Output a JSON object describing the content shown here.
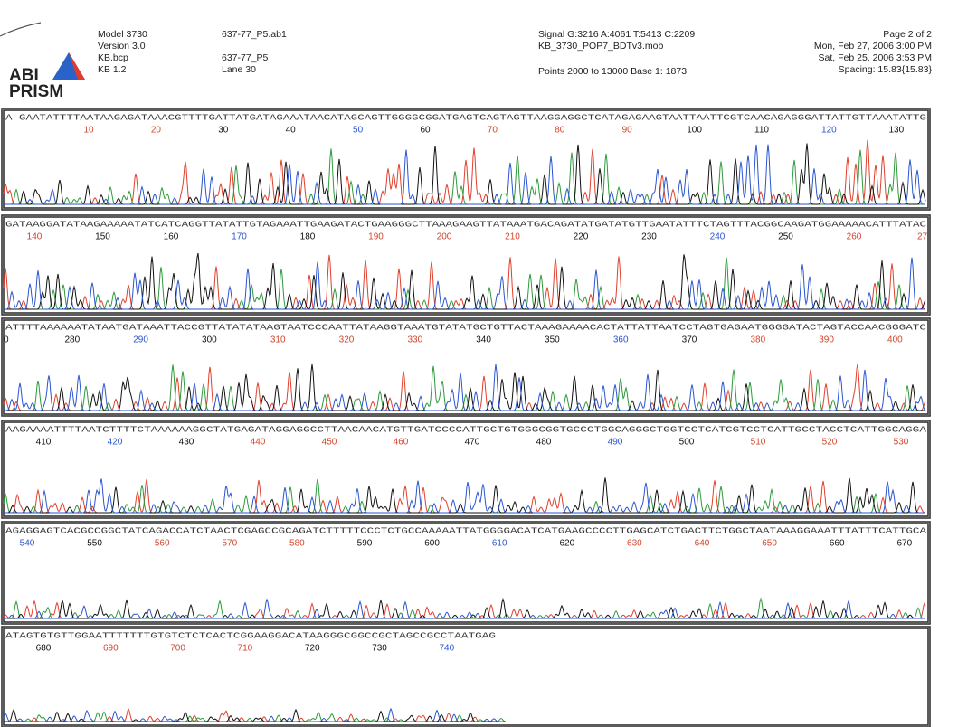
{
  "header": {
    "logo": [
      "ABI",
      "PRISM"
    ],
    "col1": [
      "Model 3730",
      "Version 3.0",
      "KB.bcp",
      "KB 1.2"
    ],
    "col2": [
      "637-77_P5.ab1",
      "637-77_P5",
      "Lane 30"
    ],
    "col3": [
      "Signal G:3216 A:4061 T:5413 C:2209",
      "KB_3730_POP7_BDTv3.mob",
      "Points 2000 to 13000  Base 1: 1873"
    ],
    "col4": [
      "Page 2 of 2",
      "Mon, Feb 27, 2006  3:00 PM",
      "Sat, Feb 25, 2006  3:53 PM",
      "Spacing: 15.83{15.83}"
    ]
  },
  "panels": [
    {
      "sequence": "A GAATATTTTAATAAGAGATAAACGTTTTGATTATGATAGAAATAACATAGCAGTTGGGGCGGATGAGTCAGTAGTTAAGGAGGCTCATAGAGAAGTAATTAATTCGTCAACAGAGGGATTATTGTTAAATATTG",
      "positions": [
        10,
        20,
        30,
        40,
        50,
        60,
        70,
        80,
        90,
        100,
        110,
        120,
        130
      ]
    },
    {
      "sequence": "GATAAGGATATAAGAAAAATATCATCAGGTTATATTGTAGAAATTGAAGATACTGAAGGGCTTAAAGAAGTTATAAATGACAGATATGATATGTTGAATATTTCTAGTTTACGGCAAGATGGAAAAACATTTATAC",
      "positions": [
        140,
        150,
        160,
        170,
        180,
        190,
        200,
        210,
        220,
        230,
        240,
        250,
        260,
        27
      ]
    },
    {
      "sequence": "ATTTTAAAAAATATAATGATAAATTACCGTTATATATAAGTAATCCCAATTATAAGGTAAATGTATATGCTGTTACTAAAGAAAACACTATTATTAATCCTAGTGAGAATGGGGATACTAGTACCAACGGGATC",
      "positions": [
        0,
        280,
        290,
        300,
        310,
        320,
        330,
        340,
        350,
        360,
        370,
        380,
        390,
        400
      ]
    },
    {
      "sequence": "AAGAAAATTTTAATCTTTTCTAAAAAAGGCTATGAGATAGGAGGCCTTAACAACATGTTGATCCCCATTGCTGTGGGCGGTGCCCTGGCAGGGCTGGTCCTCATCGTCCTCATTGCCTACCTCATTGGCAGGA",
      "positions": [
        410,
        420,
        430,
        440,
        450,
        460,
        470,
        480,
        490,
        500,
        510,
        520,
        530
      ]
    },
    {
      "sequence": "AGAGGAGTCACGCCGGCTATCAGACCATCTAACTCGAGCCGCAGATCTTTTTCCCTCTGCCAAAAATTATGGGGACATCATGAAGCCCCTTGAGCATCTGACTTCTGGCTAATAAAGGAAATTTATTTCATTGCA",
      "positions": [
        540,
        550,
        560,
        570,
        580,
        590,
        600,
        610,
        620,
        630,
        640,
        650,
        660,
        670
      ]
    },
    {
      "sequence": "ATAGTGTGTTGGAATTTTTTTGTGTCTCTCACTCGGAAGGACATAAGGGCGGCCGCTAGCCGCCTAATGAG",
      "positions": [
        680,
        690,
        700,
        710,
        720,
        730,
        740
      ]
    }
  ]
}
